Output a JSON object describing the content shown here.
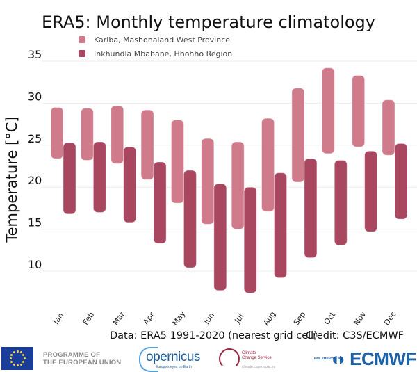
{
  "chart_data": {
    "type": "bar",
    "subtype": "floating-range",
    "title": "ERA5: Monthly temperature climatology",
    "xlabel": "",
    "ylabel": "Temperature [°C]",
    "ylim": [
      6,
      36
    ],
    "yticks": [
      10,
      15,
      20,
      25,
      30,
      35
    ],
    "grid": true,
    "legend_position": "top-left",
    "categories": [
      "Jan",
      "Feb",
      "Mar",
      "Apr",
      "May",
      "Jun",
      "Jul",
      "Aug",
      "Sep",
      "Oct",
      "Nov",
      "Dec"
    ],
    "series": [
      {
        "name": "Kariba, Mashonaland West Province",
        "color": "#cf7b8c",
        "low": [
          23.4,
          23.2,
          22.8,
          20.9,
          18.1,
          15.6,
          15.0,
          17.1,
          20.6,
          24.0,
          24.8,
          23.8
        ],
        "high": [
          29.5,
          29.4,
          29.7,
          29.2,
          28.0,
          25.8,
          25.4,
          28.2,
          31.8,
          34.2,
          33.3,
          30.4
        ]
      },
      {
        "name": "Inkhundla Mbabane, Hhohho Region",
        "color": "#a94660",
        "low": [
          16.8,
          17.0,
          15.8,
          13.3,
          10.4,
          7.7,
          7.4,
          9.2,
          11.6,
          13.1,
          14.7,
          16.2
        ],
        "high": [
          25.3,
          25.4,
          24.8,
          23.0,
          22.0,
          20.4,
          20.0,
          21.7,
          23.4,
          23.2,
          24.3,
          25.2
        ]
      }
    ]
  },
  "footer": {
    "data_source": "Data: ERA5 1991-2020 (nearest grid cell)",
    "credit": "Credit: C3S/ECMWF"
  },
  "logos": {
    "eu_line1": "PROGRAMME OF",
    "eu_line2": "THE EUROPEAN UNION",
    "copernicus": "opernicus",
    "copernicus_tagline": "Europe's eyes on Earth",
    "c3s_line1": "Climate",
    "c3s_line2": "Change Service",
    "c3s_url": "climate.copernicus.eu",
    "implemented_by": "IMPLEMENTED BY",
    "ecmwf": "ECMWF"
  }
}
